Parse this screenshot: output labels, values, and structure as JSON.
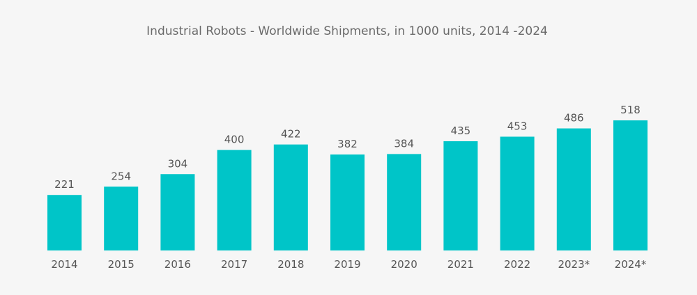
{
  "chart_data": {
    "type": "bar",
    "title": "Industrial Robots - Worldwide Shipments, in 1000 units, 2014 -2024",
    "categories": [
      "2014",
      "2015",
      "2016",
      "2017",
      "2018",
      "2019",
      "2020",
      "2021",
      "2022",
      "2023*",
      "2024*"
    ],
    "values": [
      221,
      254,
      304,
      400,
      422,
      382,
      384,
      435,
      453,
      486,
      518
    ],
    "xlabel": "",
    "ylabel": "",
    "ylim": [
      0,
      518
    ],
    "grid": false,
    "bar_color": "#00c5c8"
  }
}
